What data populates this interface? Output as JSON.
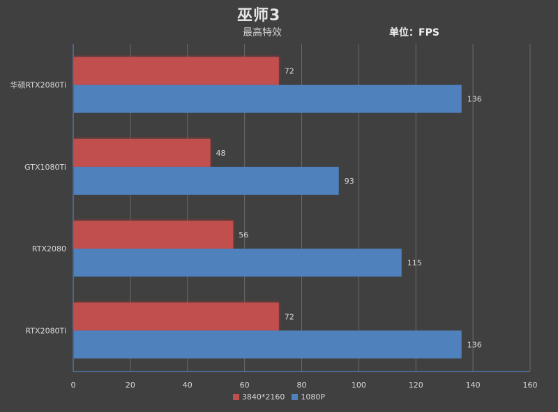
{
  "chart_data": {
    "type": "bar",
    "orientation": "horizontal",
    "title": "巫师3",
    "subtitle": "最高特效",
    "unit_label": "单位：FPS",
    "categories": [
      "华硕RTX2080Ti",
      "GTX1080Ti",
      "RTX2080",
      "RTX2080Ti"
    ],
    "series": [
      {
        "name": "3840*2160",
        "color": "#c0504d",
        "values": [
          72,
          48,
          56,
          72
        ]
      },
      {
        "name": "1080P",
        "color": "#4f81bd",
        "values": [
          136,
          93,
          115,
          136
        ]
      }
    ],
    "xlim": [
      0,
      160
    ],
    "xticks": [
      0,
      20,
      40,
      60,
      80,
      100,
      120,
      140,
      160
    ],
    "grid": true,
    "legend": "bottom"
  }
}
